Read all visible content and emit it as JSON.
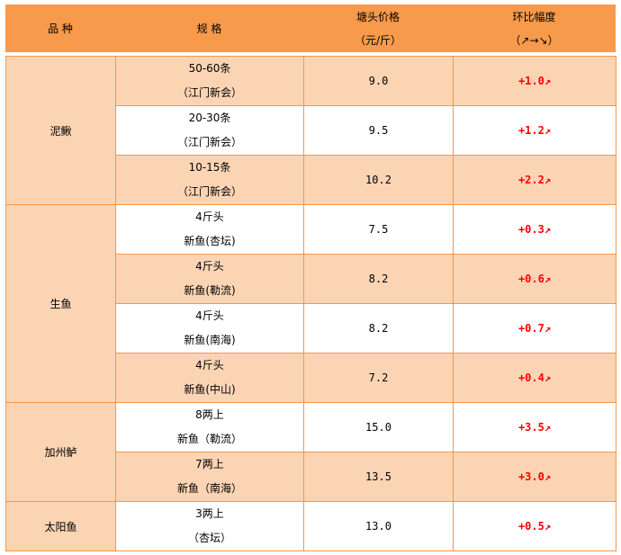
{
  "header": {
    "variety": "品 种",
    "spec": "规 格",
    "price_l1": "塘头价格",
    "price_l2": "（元/斤）",
    "change_l1": "环比幅度",
    "change_l2": "（↗→↘）"
  },
  "groups": [
    {
      "variety": "泥鳅",
      "rows": [
        {
          "spec1": "50-60条",
          "spec2": "（江门新会）",
          "price": "9.0",
          "change": "+1.0↗"
        },
        {
          "spec1": "20-30条",
          "spec2": "（江门新会）",
          "price": "9.5",
          "change": "+1.2↗"
        },
        {
          "spec1": "10-15条",
          "spec2": "（江门新会）",
          "price": "10.2",
          "change": "+2.2↗"
        }
      ]
    },
    {
      "variety": "生鱼",
      "rows": [
        {
          "spec1": "4斤头",
          "spec2": "新鱼(杏坛)",
          "price": "7.5",
          "change": "+0.3↗"
        },
        {
          "spec1": "4斤头",
          "spec2": "新鱼(勒流)",
          "price": "8.2",
          "change": "+0.6↗"
        },
        {
          "spec1": "4斤头",
          "spec2": "新鱼(南海)",
          "price": "8.2",
          "change": "+0.7↗"
        },
        {
          "spec1": "4斤头",
          "spec2": "新鱼(中山)",
          "price": "7.2",
          "change": "+0.4↗"
        }
      ]
    },
    {
      "variety": "加州鲈",
      "rows": [
        {
          "spec1": "8两上",
          "spec2": "新鱼（勒流）",
          "price": "15.0",
          "change": "+3.5↗"
        },
        {
          "spec1": "7两上",
          "spec2": "新鱼（南海）",
          "price": "13.5",
          "change": "+3.0↗"
        }
      ]
    },
    {
      "variety": "太阳鱼",
      "rows": [
        {
          "spec1": "3两上",
          "spec2": "（杏坛）",
          "price": "13.0",
          "change": "+0.5↗"
        }
      ]
    }
  ],
  "colors": {
    "header": "#F79A4B",
    "alt_row": "#FBD4B4",
    "border": "#F79646",
    "change": "#FF0000"
  }
}
